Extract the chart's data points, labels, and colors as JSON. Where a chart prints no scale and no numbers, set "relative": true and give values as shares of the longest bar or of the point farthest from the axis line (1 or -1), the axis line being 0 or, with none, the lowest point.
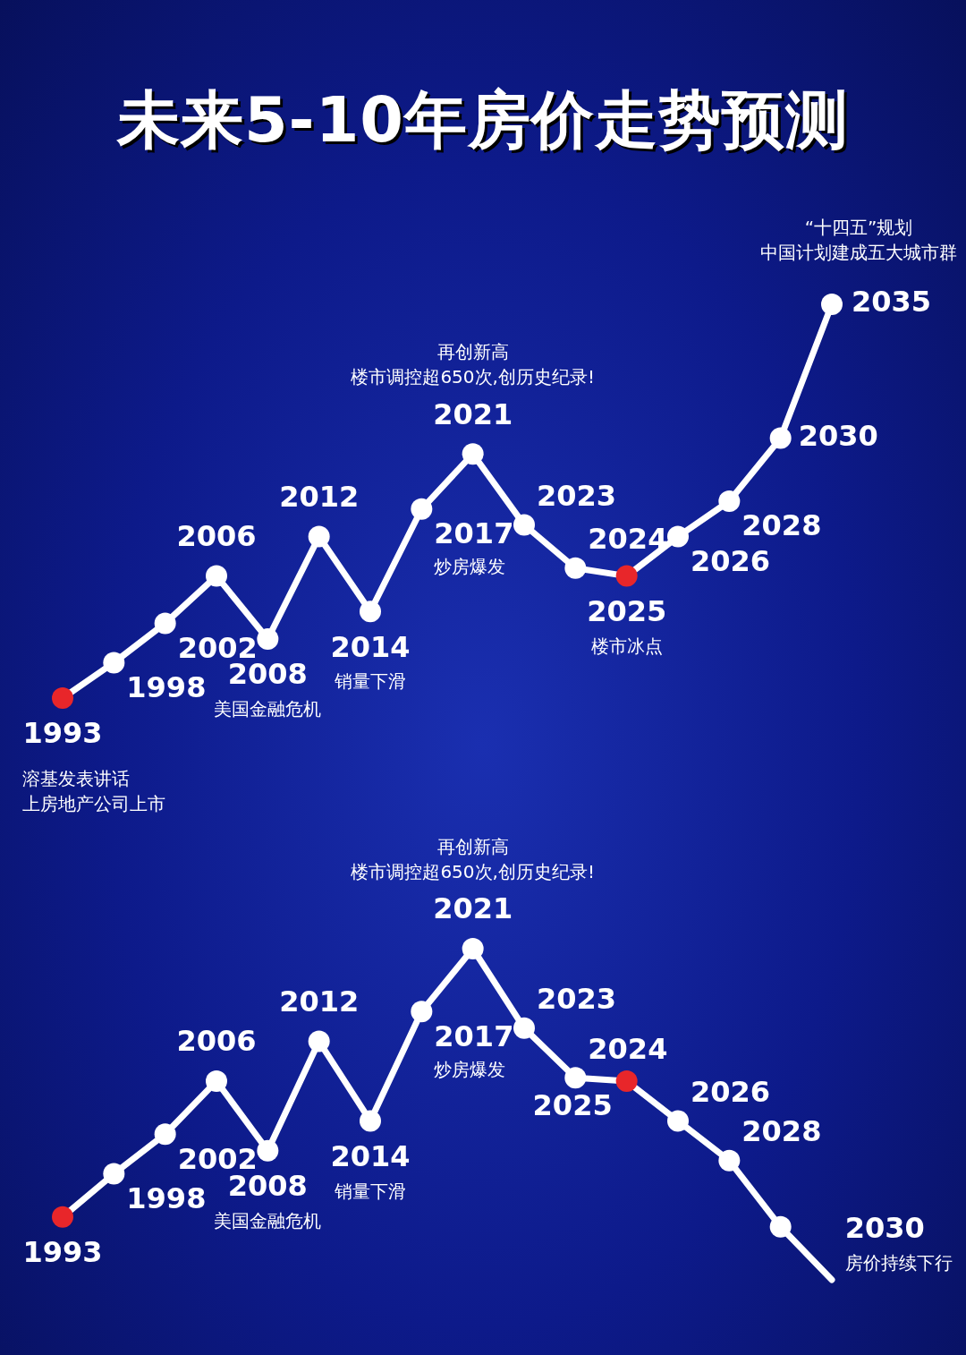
{
  "chart_data": [
    {
      "type": "line",
      "title": "未来5-10年房价走势预测",
      "relative": true,
      "marker": "circle",
      "line_style": "solid",
      "color": "#ffffff",
      "categories": [
        null,
        null,
        null,
        null,
        null,
        null,
        null,
        null,
        null,
        null,
        null,
        null,
        null,
        null,
        null,
        null
      ],
      "values": [
        0,
        0.09,
        0.19,
        0.31,
        0.15,
        0.41,
        0.22,
        0.48,
        0.62,
        0.44,
        0.33,
        0.31,
        0.41,
        0.5,
        0.66,
        1
      ],
      "colors": [
        "#e8262a",
        "#ffffff",
        "#ffffff",
        "#ffffff",
        "#ffffff",
        "#ffffff",
        "#ffffff",
        "#ffffff",
        "#ffffff",
        "#ffffff",
        "#ffffff",
        "#e8262a",
        "#ffffff",
        "#ffffff",
        "#ffffff",
        "#ffffff"
      ],
      "annotations": [
        "1993",
        "1998",
        "2002",
        "2006",
        "2008",
        "2012",
        "2014",
        "2017",
        "2021",
        "2023",
        "2024",
        "2025",
        "2026",
        "2028",
        "2030",
        "2035",
        "溶基发表讲话",
        "上房地产公司上市",
        "美国金融危机",
        "销量下滑",
        "炒房爆发",
        "再创新高",
        "楼市调控超650次,创历史纪录!",
        "楼市冰点",
        "“十四五”规划",
        "中国计划建成五大城市群"
      ]
    },
    {
      "type": "line",
      "relative": true,
      "marker": "circle",
      "line_style": "solid",
      "color": "#ffffff",
      "categories": [
        null,
        null,
        null,
        null,
        null,
        null,
        null,
        null,
        null,
        null,
        null,
        null,
        null,
        null,
        null,
        null
      ],
      "values": [
        0.19,
        0.32,
        0.44,
        0.6,
        0.39,
        0.72,
        0.48,
        0.81,
        1,
        0.76,
        0.61,
        0.6,
        0.48,
        0.36,
        0.16,
        0
      ],
      "colors": [
        "#e8262a",
        "#ffffff",
        "#ffffff",
        "#ffffff",
        "#ffffff",
        "#ffffff",
        "#ffffff",
        "#ffffff",
        "#ffffff",
        "#ffffff",
        "#ffffff",
        "#e8262a",
        "#ffffff",
        "#ffffff",
        "#ffffff",
        "#ffffff"
      ],
      "annotations": [
        "1993",
        "1998",
        "2002",
        "2006",
        "2008",
        "2012",
        "2014",
        "2017",
        "2021",
        "2023",
        "2024",
        "2025",
        "2026",
        "2028",
        "2030",
        "美国金融危机",
        "销量下滑",
        "炒房爆发",
        "再创新高",
        "楼市调控超650次,创历史纪录!",
        "房价持续下行"
      ]
    }
  ]
}
